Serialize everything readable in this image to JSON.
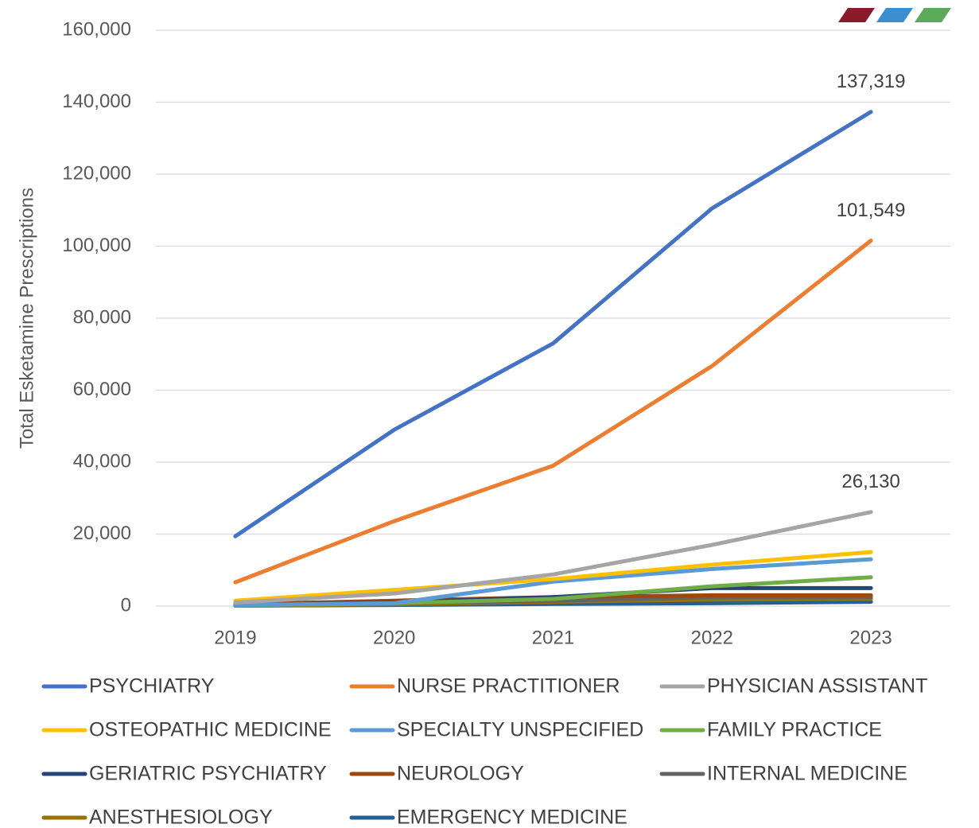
{
  "chart_data": {
    "type": "line",
    "y_axis_label": "Total Esketamine Prescriptions",
    "categories": [
      "2019",
      "2020",
      "2021",
      "2022",
      "2023"
    ],
    "ylim": [
      0,
      160000
    ],
    "yticks": [
      0,
      {
        "value": 20000,
        "label": "20,000"
      },
      {
        "value": 40000,
        "label": "40,000"
      },
      {
        "value": 60000,
        "label": "60,000"
      },
      {
        "value": 80000,
        "label": "80,000"
      },
      {
        "value": 100000,
        "label": "100,000"
      },
      {
        "value": 120000,
        "label": "120,000"
      },
      {
        "value": 140000,
        "label": "140,000"
      },
      {
        "value": 160000,
        "label": "160,000"
      }
    ],
    "grid": true,
    "legend": "bottom",
    "series": [
      {
        "name": "PSYCHIATRY",
        "color": "#4472c4",
        "values": [
          19400,
          49000,
          73000,
          110500,
          137319
        ],
        "value_labels": [
          null,
          null,
          null,
          null,
          "137,319"
        ]
      },
      {
        "name": "NURSE PRACTITIONER",
        "color": "#ed7d31",
        "values": [
          6600,
          23600,
          39000,
          66700,
          101549
        ],
        "value_labels": [
          null,
          null,
          null,
          null,
          "101,549"
        ]
      },
      {
        "name": "PHYSICIAN ASSISTANT",
        "color": "#a5a5a5",
        "values": [
          1000,
          3500,
          8800,
          17000,
          26130
        ],
        "value_labels": [
          null,
          null,
          null,
          null,
          "26,130"
        ]
      },
      {
        "name": "OSTEOPATHIC MEDICINE",
        "color": "#ffc000",
        "values": [
          1500,
          4500,
          7500,
          11500,
          15000
        ]
      },
      {
        "name": "SPECIALTY UNSPECIFIED",
        "color": "#5b9bd5",
        "values": [
          300,
          800,
          6800,
          10300,
          13000
        ]
      },
      {
        "name": "FAMILY PRACTICE",
        "color": "#70ad47",
        "values": [
          200,
          800,
          2000,
          5500,
          8000
        ]
      },
      {
        "name": "GERIATRIC PSYCHIATRY",
        "color": "#264478",
        "values": [
          300,
          1000,
          2500,
          5000,
          5000
        ]
      },
      {
        "name": "NEUROLOGY",
        "color": "#9e480e",
        "values": [
          500,
          1500,
          2500,
          3000,
          3000
        ]
      },
      {
        "name": "INTERNAL MEDICINE",
        "color": "#636363",
        "values": [
          200,
          800,
          1500,
          2500,
          2500
        ]
      },
      {
        "name": "ANESTHESIOLOGY",
        "color": "#997300",
        "values": [
          100,
          500,
          1200,
          1800,
          2000
        ]
      },
      {
        "name": "EMERGENCY MEDICINE",
        "color": "#255e91",
        "values": [
          100,
          300,
          600,
          800,
          1200
        ]
      }
    ]
  }
}
